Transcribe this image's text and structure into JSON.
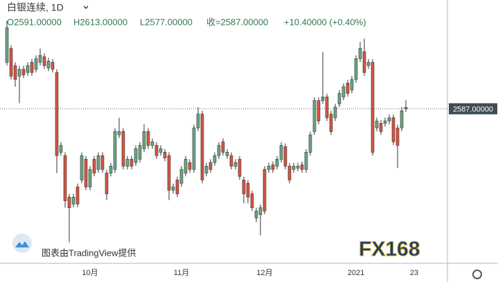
{
  "chart_data": {
    "type": "candlestick",
    "title": "白银连续, 1D",
    "legend_items": [
      "O2591.00000",
      "H2613.00000",
      "L2577.00000",
      "收=2587.00000",
      "+10.40000 (+0.40%)"
    ],
    "watermark": "图表由TradingView提供",
    "logo": "FX168",
    "up_color": "#6ba583",
    "down_color": "#d75442",
    "ylim": [
      2135,
      2917
    ],
    "price_line": {
      "value": 2587,
      "label": "2587.00000"
    },
    "categories": [
      null,
      null,
      null,
      null,
      null,
      null,
      null,
      null,
      null,
      null,
      null,
      null,
      null,
      null,
      null,
      null,
      null,
      null,
      null,
      null,
      "10月",
      null,
      null,
      null,
      null,
      null,
      null,
      null,
      null,
      null,
      null,
      null,
      null,
      null,
      null,
      null,
      null,
      null,
      null,
      null,
      null,
      null,
      "11月",
      null,
      null,
      null,
      null,
      null,
      null,
      null,
      null,
      null,
      null,
      null,
      null,
      null,
      null,
      null,
      null,
      null,
      null,
      null,
      "12月",
      null,
      null,
      null,
      null,
      null,
      null,
      null,
      null,
      null,
      null,
      null,
      null,
      null,
      null,
      null,
      null,
      null,
      null,
      null,
      null,
      null,
      "2021",
      null,
      null,
      null,
      null,
      null,
      null,
      null,
      null,
      null,
      null,
      null,
      null
    ],
    "future_labels": [
      "23"
    ],
    "open": [
      2728,
      2770,
      2718,
      2686,
      2707,
      2697,
      2728,
      2707,
      2728,
      2745,
      2711,
      2728,
      2697,
      2455,
      2445,
      2319,
      2298,
      2350,
      2371,
      2434,
      2350,
      2434,
      2403,
      2445,
      2392,
      2392,
      2403,
      2508,
      2518,
      2413,
      2434,
      2424,
      2434,
      2466,
      2518,
      2476,
      2476,
      2455,
      2455,
      2445,
      2340,
      2371,
      2361,
      2392,
      2424,
      2403,
      2529,
      2571,
      2392,
      2424,
      2424,
      2445,
      2487,
      2445,
      2445,
      2413,
      2434,
      2371,
      2361,
      2329,
      2256,
      2266,
      2403,
      2403,
      2417,
      2413,
      2434,
      2472,
      2413,
      2403,
      2407,
      2417,
      2403,
      2455,
      2518,
      2612,
      2612,
      2623,
      2571,
      2560,
      2602,
      2623,
      2665,
      2644,
      2676,
      2739,
      2760,
      2718,
      2728,
      2529,
      2543,
      2543,
      2550,
      2560,
      2529,
      2529,
      2591
    ],
    "high": [
      2854,
      2780,
      2728,
      2717,
      2717,
      2728,
      2738,
      2749,
      2770,
      2755,
      2742,
      2738,
      2707,
      2486,
      2455,
      2329,
      2329,
      2360,
      2455,
      2444,
      2413,
      2444,
      2455,
      2455,
      2402,
      2423,
      2528,
      2560,
      2528,
      2444,
      2444,
      2476,
      2486,
      2540,
      2528,
      2497,
      2486,
      2476,
      2465,
      2455,
      2360,
      2381,
      2413,
      2444,
      2434,
      2539,
      2592,
      2581,
      2423,
      2434,
      2455,
      2486,
      2497,
      2465,
      2455,
      2434,
      2444,
      2381,
      2371,
      2339,
      2287,
      2297,
      2413,
      2423,
      2427,
      2444,
      2486,
      2482,
      2423,
      2423,
      2423,
      2427,
      2465,
      2518,
      2622,
      2622,
      2760,
      2633,
      2581,
      2602,
      2644,
      2664,
      2675,
      2686,
      2749,
      2790,
      2800,
      2738,
      2738,
      2560,
      2553,
      2560,
      2570,
      2570,
      2539,
      2592,
      2613
    ],
    "low": [
      2718,
      2676,
      2654,
      2604,
      2680,
      2687,
      2687,
      2697,
      2718,
      2708,
      2701,
      2697,
      2392,
      2445,
      2287,
      2182,
      2288,
      2288,
      2361,
      2340,
      2340,
      2382,
      2393,
      2393,
      2310,
      2382,
      2393,
      2498,
      2403,
      2403,
      2403,
      2414,
      2424,
      2456,
      2466,
      2466,
      2435,
      2445,
      2428,
      2310,
      2330,
      2319,
      2351,
      2382,
      2393,
      2393,
      2519,
      2361,
      2382,
      2393,
      2414,
      2435,
      2445,
      2435,
      2403,
      2403,
      2372,
      2300,
      2300,
      2277,
      2243,
      2203,
      2267,
      2393,
      2393,
      2403,
      2424,
      2403,
      2361,
      2393,
      2397,
      2393,
      2393,
      2445,
      2508,
      2540,
      2602,
      2550,
      2508,
      2550,
      2592,
      2613,
      2624,
      2634,
      2666,
      2729,
      2687,
      2708,
      2445,
      2519,
      2508,
      2533,
      2540,
      2477,
      2407,
      2519,
      2577
    ],
    "close": [
      2833,
      2686,
      2676,
      2707,
      2690,
      2718,
      2697,
      2739,
      2749,
      2718,
      2732,
      2707,
      2445,
      2476,
      2308,
      2287,
      2319,
      2298,
      2445,
      2350,
      2403,
      2392,
      2445,
      2403,
      2329,
      2413,
      2518,
      2518,
      2413,
      2434,
      2413,
      2466,
      2476,
      2518,
      2476,
      2487,
      2445,
      2466,
      2438,
      2340,
      2350,
      2329,
      2403,
      2434,
      2403,
      2529,
      2571,
      2371,
      2413,
      2403,
      2445,
      2476,
      2455,
      2455,
      2413,
      2424,
      2382,
      2329,
      2319,
      2287,
      2277,
      2287,
      2277,
      2413,
      2403,
      2434,
      2476,
      2413,
      2371,
      2413,
      2413,
      2403,
      2455,
      2508,
      2612,
      2550,
      2623,
      2560,
      2518,
      2592,
      2634,
      2654,
      2634,
      2676,
      2739,
      2770,
      2697,
      2728,
      2455,
      2550,
      2518,
      2550,
      2560,
      2487,
      2476,
      2581,
      2587
    ]
  }
}
